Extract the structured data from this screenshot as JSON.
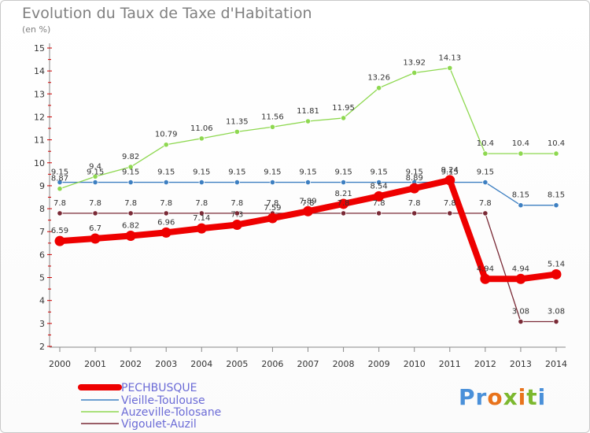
{
  "header": {
    "title": "Evolution du Taux de Taxe d'Habitation",
    "subtitle": "(en %)"
  },
  "logo": {
    "text": "Proxiti",
    "letters": [
      "P",
      "r",
      "o",
      "x",
      "i",
      "t",
      "i"
    ],
    "colors": [
      "#4a90d9",
      "#4a90d9",
      "#e8731c",
      "#7cb82f",
      "#e8731c",
      "#7cb82f",
      "#4a90d9"
    ]
  },
  "chart_data": {
    "type": "line",
    "title": "Evolution du Taux de Taxe d'Habitation",
    "ylabel": "(en %)",
    "xlabel": "",
    "ylim": [
      2,
      15
    ],
    "yticks": [
      2,
      3,
      4,
      5,
      6,
      7,
      8,
      9,
      10,
      11,
      12,
      13,
      14,
      15
    ],
    "x": [
      "2000",
      "2001",
      "2002",
      "2003",
      "2004",
      "2005",
      "2006",
      "2007",
      "2008",
      "2009",
      "2010",
      "2011",
      "2012",
      "2013",
      "2014"
    ],
    "grid": false,
    "legend_position": "bottom-left",
    "series": [
      {
        "name": "PECHBUSQUE",
        "color": "#ee0000",
        "emphasis": true,
        "values": [
          6.59,
          6.7,
          6.82,
          6.96,
          7.14,
          7.3,
          7.59,
          7.89,
          8.21,
          8.54,
          8.89,
          9.24,
          4.94,
          4.94,
          5.14
        ],
        "labels": [
          "6.59",
          "6.7",
          "6.82",
          "6.96",
          "7.14",
          "7.3",
          "7.59",
          "7.89",
          "8.21",
          "8.54",
          "8.89",
          "9.24",
          "4.94",
          "4.94",
          "5.14"
        ]
      },
      {
        "name": "Vieille-Toulouse",
        "color": "#3d7fc1",
        "emphasis": false,
        "values": [
          9.15,
          9.15,
          9.15,
          9.15,
          9.15,
          9.15,
          9.15,
          9.15,
          9.15,
          9.15,
          9.15,
          9.15,
          9.15,
          8.15,
          8.15
        ],
        "labels": [
          "9.15",
          "9.15",
          "9.15",
          "9.15",
          "9.15",
          "9.15",
          "9.15",
          "9.15",
          "9.15",
          "9.15",
          "9.15",
          "9.15",
          "9.15",
          "8.15",
          "8.15"
        ]
      },
      {
        "name": "Auzeville-Tolosane",
        "color": "#8ed850",
        "emphasis": false,
        "values": [
          8.87,
          9.4,
          9.82,
          10.79,
          11.06,
          11.35,
          11.56,
          11.81,
          11.95,
          13.26,
          13.92,
          14.13,
          10.4,
          10.4,
          10.4
        ],
        "labels": [
          "8.87",
          "9.4",
          "9.82",
          "10.79",
          "11.06",
          "11.35",
          "11.56",
          "11.81",
          "11.95",
          "13.26",
          "13.92",
          "14.13",
          "10.4",
          "10.4",
          "10.4"
        ]
      },
      {
        "name": "Vigoulet-Auzil",
        "color": "#7a2a36",
        "emphasis": false,
        "values": [
          7.8,
          7.8,
          7.8,
          7.8,
          7.8,
          7.8,
          7.8,
          7.8,
          7.8,
          7.8,
          7.8,
          7.8,
          7.8,
          3.08,
          3.08
        ],
        "labels": [
          "7.8",
          "7.8",
          "7.8",
          "7.8",
          "7.8",
          "7.8",
          "7.8",
          "7.8",
          "7.8",
          "7.8",
          "7.8",
          "7.8",
          "7.8",
          "3.08",
          "3.08"
        ]
      }
    ]
  }
}
